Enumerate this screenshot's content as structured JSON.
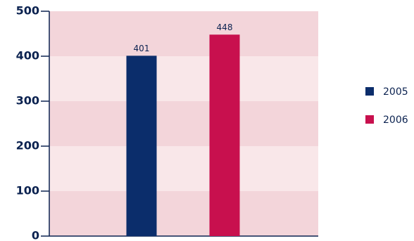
{
  "chart_data": {
    "type": "bar",
    "categories": [
      null
    ],
    "series": [
      {
        "name": "2005",
        "color": "#0b2d6b",
        "values": [
          401
        ]
      },
      {
        "name": "2006",
        "color": "#c8104e",
        "values": [
          448
        ]
      }
    ],
    "ylim": [
      0,
      500
    ],
    "yticks": [
      0,
      100,
      200,
      300,
      400,
      500
    ]
  }
}
